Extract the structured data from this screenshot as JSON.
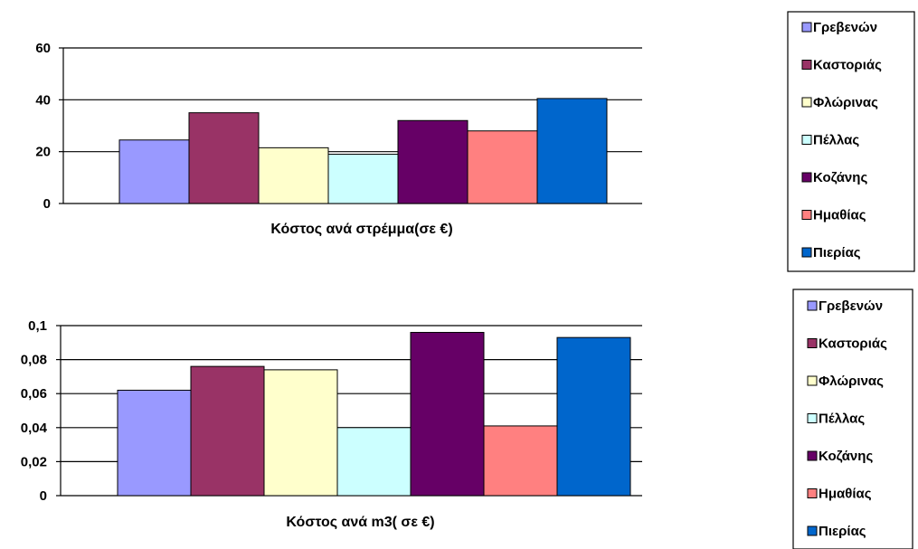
{
  "chart_data": [
    {
      "type": "bar",
      "xlabel": "Κόστος ανά  στρέμμα(σε €)",
      "ylabel": "",
      "ylim": [
        0,
        60
      ],
      "yticks": [
        "0",
        "20",
        "40",
        "60"
      ],
      "grid": true,
      "legend_position": "right",
      "series": [
        {
          "name": "Γρεβενών",
          "values": [
            24.5
          ],
          "color": "#9999ff"
        },
        {
          "name": "Καστοριάς",
          "values": [
            35
          ],
          "color": "#993366"
        },
        {
          "name": "Φλώρινας",
          "values": [
            21.5
          ],
          "color": "#ffffcc"
        },
        {
          "name": "Πέλλας",
          "values": [
            19
          ],
          "color": "#ccffff"
        },
        {
          "name": "Κοζάνης",
          "values": [
            32
          ],
          "color": "#660066"
        },
        {
          "name": "Ημαθίας",
          "values": [
            28
          ],
          "color": "#ff8080"
        },
        {
          "name": "Πιερίας",
          "values": [
            40.5
          ],
          "color": "#0066cc"
        }
      ]
    },
    {
      "type": "bar",
      "xlabel": "Κόστος ανά m3( σε €)",
      "ylabel": "",
      "ylim": [
        0,
        0.1
      ],
      "yticks": [
        "0",
        "0,02",
        "0,04",
        "0,06",
        "0,08",
        "0,1"
      ],
      "grid": true,
      "legend_position": "right",
      "series": [
        {
          "name": "Γρεβενών",
          "values": [
            0.062
          ],
          "color": "#9999ff"
        },
        {
          "name": "Καστοριάς",
          "values": [
            0.076
          ],
          "color": "#993366"
        },
        {
          "name": "Φλώρινας",
          "values": [
            0.074
          ],
          "color": "#ffffcc"
        },
        {
          "name": "Πέλλας",
          "values": [
            0.04
          ],
          "color": "#ccffff"
        },
        {
          "name": "Κοζάνης",
          "values": [
            0.096
          ],
          "color": "#660066"
        },
        {
          "name": "Ημαθίας",
          "values": [
            0.041
          ],
          "color": "#ff8080"
        },
        {
          "name": "Πιερίας",
          "values": [
            0.093
          ],
          "color": "#0066cc"
        }
      ]
    }
  ]
}
